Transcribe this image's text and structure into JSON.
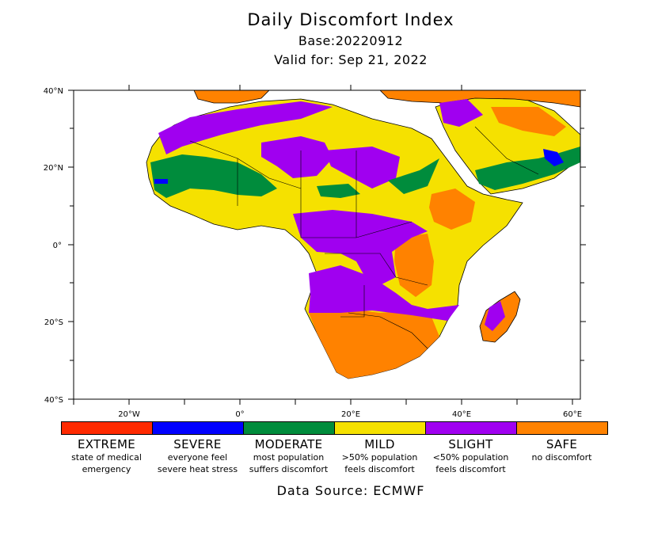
{
  "header": {
    "title": "Daily Discomfort Index",
    "base": "Base:20220912",
    "valid": "Valid for: Sep 21, 2022"
  },
  "map": {
    "lat_labels": [
      "40°N",
      "20°N",
      "0°",
      "20°S",
      "40°S"
    ],
    "lon_labels": [
      "20°W",
      "0°",
      "20°E",
      "40°E",
      "60°E"
    ]
  },
  "legend": [
    {
      "name": "EXTREME",
      "desc1": "state of medical",
      "desc2": "emergency",
      "color": "#ff2a00"
    },
    {
      "name": "SEVERE",
      "desc1": "everyone feel",
      "desc2": "severe heat stress",
      "color": "#0000ff"
    },
    {
      "name": "MODERATE",
      "desc1": "most population",
      "desc2": "suffers discomfort",
      "color": "#008c3c"
    },
    {
      "name": "MILD",
      "desc1": ">50% population",
      "desc2": "feels discomfort",
      "color": "#f5e100"
    },
    {
      "name": "SLIGHT",
      "desc1": "<50% population",
      "desc2": "feels discomfort",
      "color": "#a000f0"
    },
    {
      "name": "SAFE",
      "desc1": "no discomfort",
      "desc2": "",
      "color": "#ff8200"
    }
  ],
  "source": "Data Source: ECMWF"
}
